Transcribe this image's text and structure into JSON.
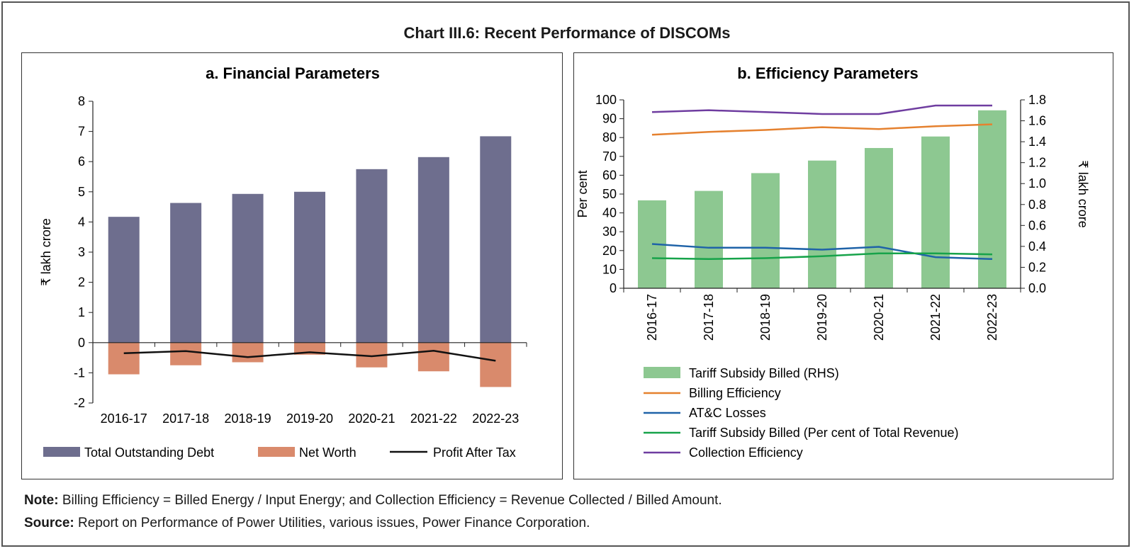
{
  "title": "Chart III.6: Recent Performance of DISCOMs",
  "note_label": "Note:",
  "note_text": "Billing Efficiency = Billed Energy / Input Energy; and Collection Efficiency = Revenue Collected / Billed Amount.",
  "source_label": "Source:",
  "source_text": "Report on Performance of Power Utilities, various issues, Power Finance Corporation.",
  "colors": {
    "debt": "#6e6e8e",
    "net_worth": "#d98a6c",
    "pat": "#111111",
    "subsidy_bar": "#8dc891",
    "billing": "#e5812f",
    "atc": "#1f63a8",
    "subsidy_pct": "#17a34a",
    "collection": "#6f3da0"
  },
  "chart_data": [
    {
      "type": "bar",
      "title": "a. Financial Parameters",
      "ylabel": "₹ lakh crore",
      "ylim": [
        -2,
        8
      ],
      "yticks": [
        -2,
        -1,
        0,
        1,
        2,
        3,
        4,
        5,
        6,
        7,
        8
      ],
      "categories": [
        "2016-17",
        "2017-18",
        "2018-19",
        "2019-20",
        "2020-21",
        "2021-22",
        "2022-23"
      ],
      "series": [
        {
          "name": "Total Outstanding Debt",
          "kind": "bar",
          "values": [
            4.17,
            4.63,
            4.93,
            5.0,
            5.75,
            6.15,
            6.84
          ]
        },
        {
          "name": "Net Worth",
          "kind": "bar",
          "values": [
            -1.05,
            -0.75,
            -0.65,
            -0.4,
            -0.82,
            -0.95,
            -1.47
          ]
        },
        {
          "name": "Profit After Tax",
          "kind": "line",
          "values": [
            -0.35,
            -0.28,
            -0.48,
            -0.32,
            -0.45,
            -0.27,
            -0.6
          ]
        }
      ],
      "legend": "bottom"
    },
    {
      "type": "bar",
      "title": "b. Efficiency Parameters",
      "ylabel": "Per cent",
      "y2label": "₹ lakh crore",
      "ylim": [
        0,
        100
      ],
      "yticks": [
        0,
        10,
        20,
        30,
        40,
        50,
        60,
        70,
        80,
        90,
        100
      ],
      "y2lim": [
        0,
        1.8
      ],
      "y2ticks": [
        "0.0",
        "0.2",
        "0.4",
        "0.6",
        "0.8",
        "1.0",
        "1.2",
        "1.4",
        "1.6",
        "1.8"
      ],
      "categories": [
        "2016-17",
        "2017-18",
        "2018-19",
        "2019-20",
        "2020-21",
        "2021-22",
        "2022-23"
      ],
      "series": [
        {
          "name": "Tariff Subsidy Billed (RHS)",
          "kind": "bar",
          "axis": "right",
          "values": [
            0.84,
            0.93,
            1.1,
            1.22,
            1.34,
            1.45,
            1.7
          ]
        },
        {
          "name": "Billing Efficiency",
          "kind": "line",
          "values": [
            81.5,
            83,
            84,
            85.5,
            84.5,
            86,
            87
          ]
        },
        {
          "name": "AT&C Losses",
          "kind": "line",
          "values": [
            23.5,
            21.5,
            21.5,
            20.5,
            22,
            16.5,
            15.5
          ]
        },
        {
          "name": "Tariff Subsidy Billed (Per cent of Total Revenue)",
          "kind": "line",
          "values": [
            16,
            15.5,
            16,
            17,
            18.5,
            18.5,
            18
          ]
        },
        {
          "name": "Collection Efficiency",
          "kind": "line",
          "values": [
            93.5,
            94.5,
            93.5,
            92.5,
            92.5,
            97,
            97
          ]
        }
      ],
      "legend": "bottom"
    }
  ]
}
